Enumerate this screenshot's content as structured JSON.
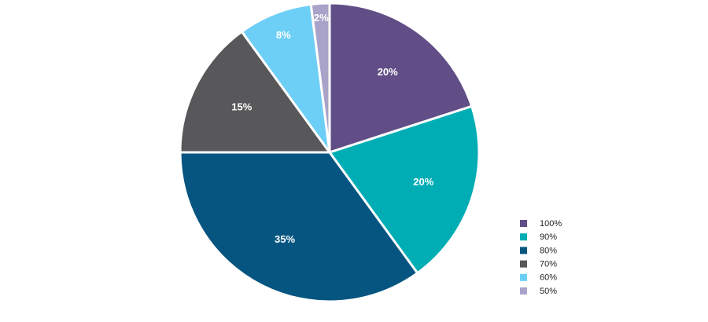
{
  "chart_data": {
    "type": "pie",
    "title": "",
    "slices": [
      {
        "label": "100%",
        "value": 20,
        "data_label": "20%",
        "color": "#614e86"
      },
      {
        "label": "90%",
        "value": 20,
        "data_label": "20%",
        "color": "#00adb5"
      },
      {
        "label": "80%",
        "value": 35,
        "data_label": "35%",
        "color": "#055580"
      },
      {
        "label": "70%",
        "value": 15,
        "data_label": "15%",
        "color": "#58585a"
      },
      {
        "label": "60%",
        "value": 8,
        "data_label": "8%",
        "color": "#6ecff6"
      },
      {
        "label": "50%",
        "value": 2,
        "data_label": "2%",
        "color": "#a9a3c9"
      }
    ],
    "start_angle": "12 o'clock",
    "direction": "clockwise",
    "legend": {
      "placement": "bottom-right"
    }
  }
}
